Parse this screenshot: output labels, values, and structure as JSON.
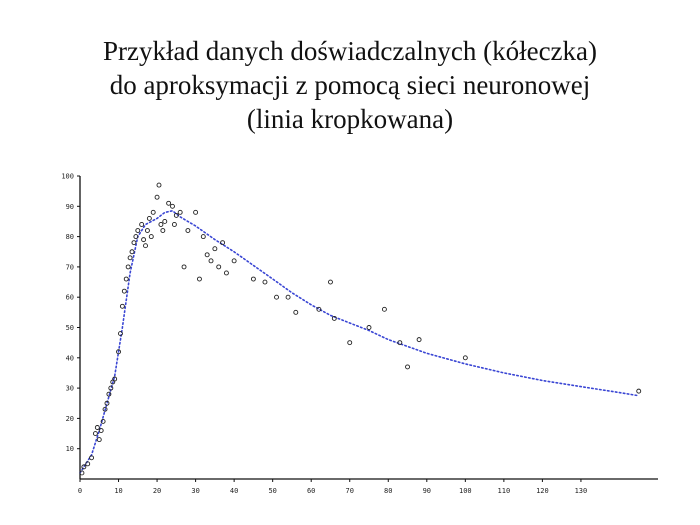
{
  "title_lines": [
    "Przykład danych doświadczalnych (kółeczka)",
    "do aproksymacji z pomocą sieci neuronowej",
    "(linia kropkowana)"
  ],
  "chart_data": {
    "type": "scatter",
    "title": "Przykład danych doświadczalnych (kółeczka) do aproksymacji z pomocą sieci neuronowej (linia kropkowana)",
    "xlim": [
      0,
      150
    ],
    "ylim": [
      0,
      100
    ],
    "x_ticks": [
      "0",
      "10",
      "20",
      "30",
      "40",
      "50",
      "60",
      "70",
      "80",
      "90",
      "100",
      "110",
      "120",
      "130"
    ],
    "y_ticks": [
      "10",
      "20",
      "30",
      "40",
      "50",
      "60",
      "70",
      "80",
      "90",
      "100"
    ],
    "grid": false,
    "series": [
      {
        "kind": "points",
        "marker": "circle",
        "points": [
          [
            0.5,
            2
          ],
          [
            1,
            4
          ],
          [
            2,
            5
          ],
          [
            3,
            7
          ],
          [
            4,
            15
          ],
          [
            4.5,
            17
          ],
          [
            5,
            13
          ],
          [
            5.5,
            16
          ],
          [
            6,
            19
          ],
          [
            6.5,
            23
          ],
          [
            7,
            25
          ],
          [
            7.5,
            28
          ],
          [
            8,
            30
          ],
          [
            8.5,
            32
          ],
          [
            9,
            33
          ],
          [
            10,
            42
          ],
          [
            10.5,
            48
          ],
          [
            11,
            57
          ],
          [
            11.5,
            62
          ],
          [
            12,
            66
          ],
          [
            12.5,
            70
          ],
          [
            13,
            73
          ],
          [
            13.5,
            75
          ],
          [
            14,
            78
          ],
          [
            14.5,
            80
          ],
          [
            15,
            82
          ],
          [
            16,
            84
          ],
          [
            16.5,
            79
          ],
          [
            17,
            77
          ],
          [
            17.5,
            82
          ],
          [
            18,
            86
          ],
          [
            18.5,
            80
          ],
          [
            19,
            88
          ],
          [
            20,
            93
          ],
          [
            20.5,
            97
          ],
          [
            21,
            84
          ],
          [
            21.5,
            82
          ],
          [
            22,
            85
          ],
          [
            23,
            91
          ],
          [
            24,
            90
          ],
          [
            24.5,
            84
          ],
          [
            25,
            87
          ],
          [
            26,
            88
          ],
          [
            27,
            70
          ],
          [
            28,
            82
          ],
          [
            30,
            88
          ],
          [
            31,
            66
          ],
          [
            32,
            80
          ],
          [
            33,
            74
          ],
          [
            34,
            72
          ],
          [
            35,
            76
          ],
          [
            36,
            70
          ],
          [
            37,
            78
          ],
          [
            38,
            68
          ],
          [
            40,
            72
          ],
          [
            45,
            66
          ],
          [
            48,
            65
          ],
          [
            51,
            60
          ],
          [
            54,
            60
          ],
          [
            56,
            55
          ],
          [
            62,
            56
          ],
          [
            65,
            65
          ],
          [
            66,
            53
          ],
          [
            70,
            45
          ],
          [
            75,
            50
          ],
          [
            79,
            56
          ],
          [
            83,
            45
          ],
          [
            85,
            37
          ],
          [
            88,
            46
          ],
          [
            100,
            40
          ],
          [
            145,
            29
          ]
        ]
      },
      {
        "kind": "curve",
        "style": "dotted",
        "color": "#3a46d4",
        "points": [
          [
            0,
            2
          ],
          [
            3,
            8
          ],
          [
            5,
            16
          ],
          [
            7,
            25
          ],
          [
            9,
            34
          ],
          [
            11,
            50
          ],
          [
            13,
            68
          ],
          [
            15,
            80
          ],
          [
            17,
            84
          ],
          [
            20,
            86
          ],
          [
            22,
            88
          ],
          [
            24,
            88.5
          ],
          [
            26,
            86.5
          ],
          [
            30,
            83.5
          ],
          [
            35,
            79
          ],
          [
            40,
            75
          ],
          [
            45,
            70.5
          ],
          [
            50,
            66
          ],
          [
            55,
            61.5
          ],
          [
            60,
            57.5
          ],
          [
            65,
            54
          ],
          [
            70,
            51.5
          ],
          [
            75,
            49
          ],
          [
            80,
            46
          ],
          [
            90,
            41.5
          ],
          [
            100,
            38
          ],
          [
            110,
            35
          ],
          [
            120,
            32.5
          ],
          [
            130,
            30.5
          ],
          [
            140,
            28.5
          ],
          [
            145,
            27.5
          ]
        ]
      }
    ]
  }
}
